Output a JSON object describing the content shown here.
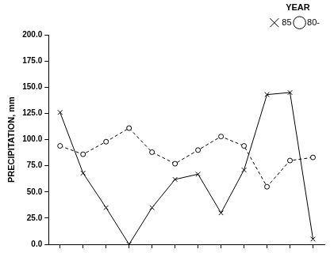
{
  "chart_data": {
    "type": "line",
    "y_label": "PRECIPITATION, mm",
    "legend_title": "YEAR",
    "categories": [
      null,
      null,
      null,
      null,
      null,
      null,
      null,
      null,
      null,
      null,
      null,
      null
    ],
    "series": [
      {
        "name": "85",
        "color": "#000000",
        "marker": "x",
        "line_style": "solid",
        "values": [
          126,
          68,
          35,
          0,
          35,
          62,
          67,
          30,
          71,
          143,
          145,
          5
        ]
      },
      {
        "name": "80-",
        "color": "#000000",
        "marker": "circle",
        "line_style": "dashed",
        "values": [
          94,
          86,
          98,
          111,
          88,
          77,
          90,
          103,
          94,
          55,
          80,
          83
        ]
      }
    ],
    "ylim": [
      0,
      200
    ],
    "yticks": [
      {
        "value": 0,
        "label": "0.0"
      },
      {
        "value": 25,
        "label": "25.0"
      },
      {
        "value": 50,
        "label": "50.0"
      },
      {
        "value": 75,
        "label": "75.0"
      },
      {
        "value": 100,
        "label": "100.0"
      },
      {
        "value": 125,
        "label": "125.0"
      },
      {
        "value": 150,
        "label": "150.0"
      },
      {
        "value": 175,
        "label": "175.0"
      },
      {
        "value": 200,
        "label": "200.0"
      }
    ],
    "grid": false,
    "legend": "top-right",
    "tick_labels": "y"
  }
}
